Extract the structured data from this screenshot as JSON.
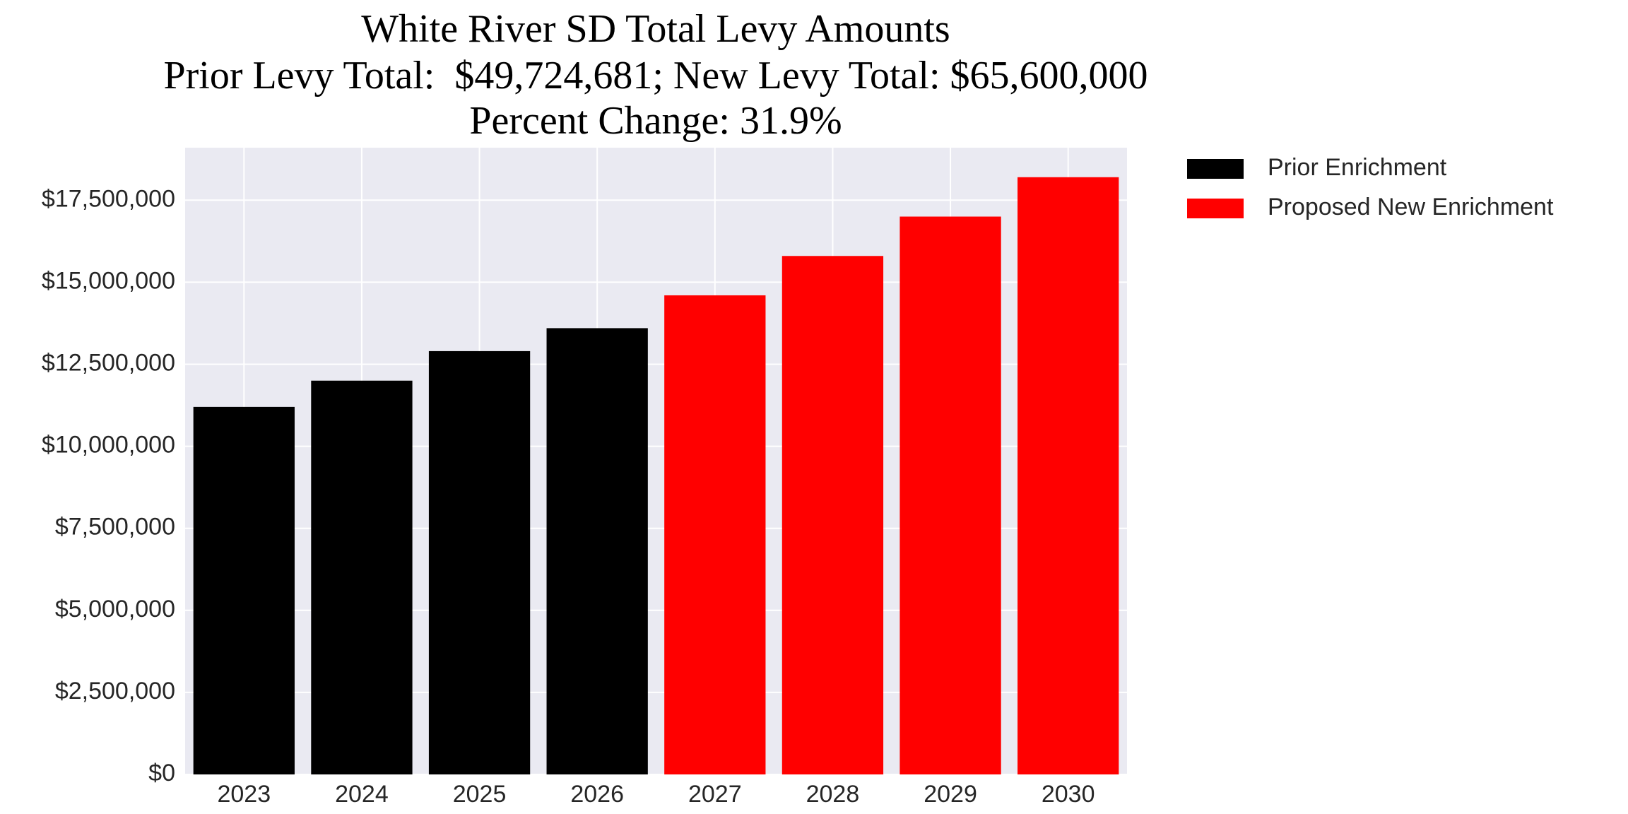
{
  "chart_data": {
    "type": "bar",
    "title": "White River SD Total Levy Amounts",
    "subtitle": [
      "Prior Levy Total:  $49,724,681; New Levy Total: $65,600,000",
      "Percent Change: 31.9%"
    ],
    "categories": [
      "2023",
      "2024",
      "2025",
      "2026",
      "2027",
      "2028",
      "2029",
      "2030"
    ],
    "series": [
      {
        "name": "Prior Enrichment",
        "color": "#000000",
        "values": [
          11200000,
          12000000,
          12900000,
          13600000,
          null,
          null,
          null,
          null
        ]
      },
      {
        "name": "Proposed New Enrichment",
        "color": "#ff0000",
        "values": [
          null,
          null,
          null,
          null,
          14600000,
          15800000,
          17000000,
          18200000
        ]
      }
    ],
    "ylim": [
      0,
      19100000
    ],
    "yticks": [
      {
        "value": 0,
        "label": "$0"
      },
      {
        "value": 2500000,
        "label": "$2,500,000"
      },
      {
        "value": 5000000,
        "label": "$5,000,000"
      },
      {
        "value": 7500000,
        "label": "$7,500,000"
      },
      {
        "value": 10000000,
        "label": "$10,000,000"
      },
      {
        "value": 12500000,
        "label": "$12,500,000"
      },
      {
        "value": 15000000,
        "label": "$15,000,000"
      },
      {
        "value": 17500000,
        "label": "$17,500,000"
      }
    ],
    "grid": true,
    "legend": "outside-upper-right"
  }
}
